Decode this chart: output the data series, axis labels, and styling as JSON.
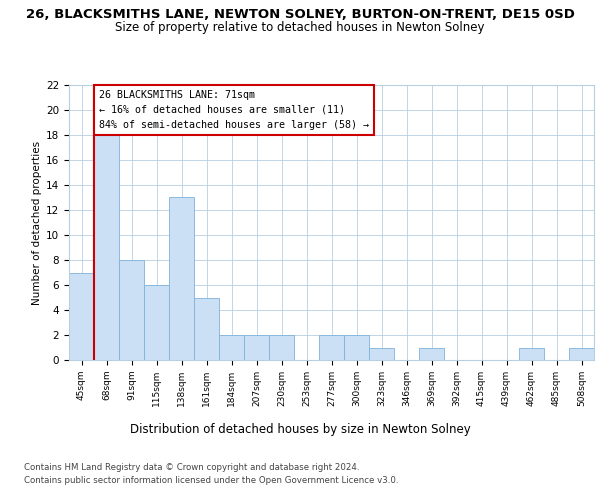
{
  "title_line1": "26, BLACKSMITHS LANE, NEWTON SOLNEY, BURTON-ON-TRENT, DE15 0SD",
  "title_line2": "Size of property relative to detached houses in Newton Solney",
  "xlabel": "Distribution of detached houses by size in Newton Solney",
  "ylabel": "Number of detached properties",
  "categories": [
    "45sqm",
    "68sqm",
    "91sqm",
    "115sqm",
    "138sqm",
    "161sqm",
    "184sqm",
    "207sqm",
    "230sqm",
    "253sqm",
    "277sqm",
    "300sqm",
    "323sqm",
    "346sqm",
    "369sqm",
    "392sqm",
    "415sqm",
    "439sqm",
    "462sqm",
    "485sqm",
    "508sqm"
  ],
  "values": [
    7,
    18,
    8,
    6,
    13,
    5,
    2,
    2,
    2,
    0,
    2,
    2,
    1,
    0,
    1,
    0,
    0,
    0,
    1,
    0,
    1
  ],
  "bar_color": "#cce0f5",
  "bar_edge_color": "#7fb3d9",
  "subject_line_color": "#cc0000",
  "annotation_box_text": "26 BLACKSMITHS LANE: 71sqm\n← 16% of detached houses are smaller (11)\n84% of semi-detached houses are larger (58) →",
  "ylim": [
    0,
    22
  ],
  "yticks": [
    0,
    2,
    4,
    6,
    8,
    10,
    12,
    14,
    16,
    18,
    20,
    22
  ],
  "background_color": "#ffffff",
  "grid_color": "#b8cfe0",
  "footer_line1": "Contains HM Land Registry data © Crown copyright and database right 2024.",
  "footer_line2": "Contains public sector information licensed under the Open Government Licence v3.0."
}
